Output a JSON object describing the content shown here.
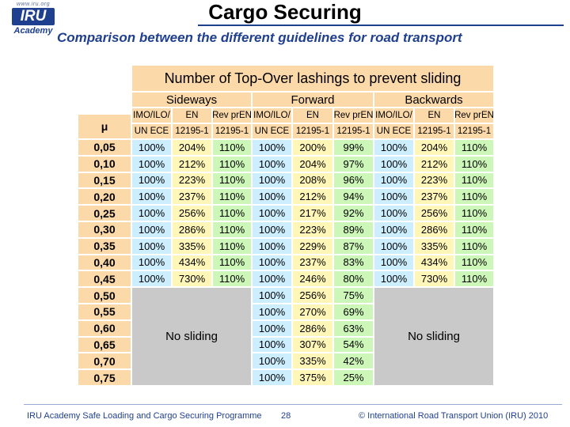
{
  "logo": {
    "url": "www.iru.org",
    "mark": "IRU",
    "academy": "Academy"
  },
  "slide": {
    "title": "Cargo Securing",
    "subtitle": "Comparison between the different guidelines for road transport"
  },
  "table": {
    "title": "Number of Top-Over lashings to prevent sliding",
    "groups": [
      "Sideways",
      "Forward",
      "Backwards"
    ],
    "col_line1": [
      "IMO/ILO/",
      "EN",
      "Rev prEN",
      "IMO/ILO/",
      "EN",
      "Rev prEN",
      "IMO/ILO/",
      "EN",
      "Rev prEN"
    ],
    "col_line2": [
      "UN ECE",
      "12195-1",
      "12195-1",
      "UN ECE",
      "12195-1",
      "12195-1",
      "UN ECE",
      "12195-1",
      "12195-1"
    ],
    "mu_label": "μ",
    "mu": [
      "0,05",
      "0,10",
      "0,15",
      "0,20",
      "0,25",
      "0,30",
      "0,35",
      "0,40",
      "0,45",
      "0,50",
      "0,55",
      "0,60",
      "0,65",
      "0,70",
      "0,75"
    ],
    "sideways": [
      [
        "100%",
        "204%",
        "110%"
      ],
      [
        "100%",
        "212%",
        "110%"
      ],
      [
        "100%",
        "223%",
        "110%"
      ],
      [
        "100%",
        "237%",
        "110%"
      ],
      [
        "100%",
        "256%",
        "110%"
      ],
      [
        "100%",
        "286%",
        "110%"
      ],
      [
        "100%",
        "335%",
        "110%"
      ],
      [
        "100%",
        "434%",
        "110%"
      ],
      [
        "100%",
        "730%",
        "110%"
      ]
    ],
    "forward": [
      [
        "100%",
        "200%",
        "99%"
      ],
      [
        "100%",
        "204%",
        "97%"
      ],
      [
        "100%",
        "208%",
        "96%"
      ],
      [
        "100%",
        "212%",
        "94%"
      ],
      [
        "100%",
        "217%",
        "92%"
      ],
      [
        "100%",
        "223%",
        "89%"
      ],
      [
        "100%",
        "229%",
        "87%"
      ],
      [
        "100%",
        "237%",
        "83%"
      ],
      [
        "100%",
        "246%",
        "80%"
      ],
      [
        "100%",
        "256%",
        "75%"
      ],
      [
        "100%",
        "270%",
        "69%"
      ],
      [
        "100%",
        "286%",
        "63%"
      ],
      [
        "100%",
        "307%",
        "54%"
      ],
      [
        "100%",
        "335%",
        "42%"
      ],
      [
        "100%",
        "375%",
        "25%"
      ]
    ],
    "backwards": [
      [
        "100%",
        "204%",
        "110%"
      ],
      [
        "100%",
        "212%",
        "110%"
      ],
      [
        "100%",
        "223%",
        "110%"
      ],
      [
        "100%",
        "237%",
        "110%"
      ],
      [
        "100%",
        "256%",
        "110%"
      ],
      [
        "100%",
        "286%",
        "110%"
      ],
      [
        "100%",
        "335%",
        "110%"
      ],
      [
        "100%",
        "434%",
        "110%"
      ],
      [
        "100%",
        "730%",
        "110%"
      ]
    ],
    "no_sliding": "No sliding",
    "colors": {
      "header": "#fbd9a8",
      "col1": "#cceeff",
      "col2": "#fff6b8",
      "col3": "#cdf7b8",
      "no_sliding": "#c9c9c9"
    }
  },
  "footer": {
    "programme": "IRU Academy Safe Loading and Cargo Securing Programme",
    "page": "28",
    "copyright": "© International Road Transport Union (IRU) 2010"
  }
}
